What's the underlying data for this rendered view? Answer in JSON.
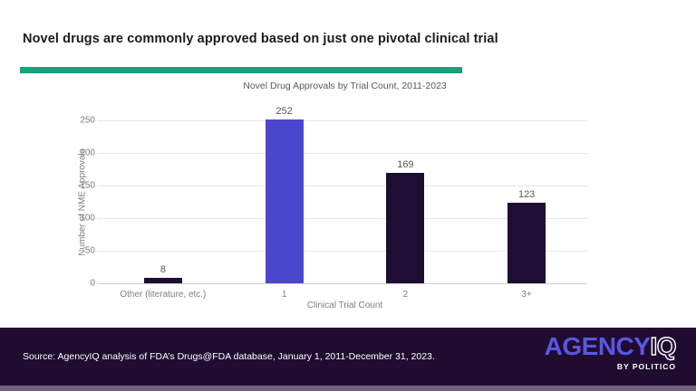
{
  "page": {
    "headline": "Novel drugs are commonly approved based on just one pivotal clinical trial",
    "accent_color": "#12a47b"
  },
  "chart_data": {
    "type": "bar",
    "title": "Novel Drug Approvals by Trial Count, 2011-2023",
    "categories": [
      "Other (literature, etc.)",
      "1",
      "2",
      "3+"
    ],
    "values": [
      8,
      252,
      169,
      123
    ],
    "xlabel": "Clinical Trial Count",
    "ylabel": "Number of NME Approvals",
    "ylim": [
      0,
      250
    ],
    "ytick_step": 50,
    "yticks": [
      0,
      50,
      100,
      150,
      200,
      250
    ],
    "grid": true,
    "legend": false,
    "bar_colors": [
      "#1e0e33",
      "#4b47cd",
      "#1e0e33",
      "#1e0e33"
    ],
    "value_label_color": "#595959",
    "axis_label_color": "#7f7f7f"
  },
  "footer": {
    "source": "Source: AgencyIQ analysis of FDA’s Drugs@FDA database, January 1, 2011-December 31, 2023.",
    "background": "#1f0c30",
    "strip_color": "#6f607e",
    "logo": {
      "agency": "AGENCY",
      "iq": "IQ",
      "byline": "BY POLITICO",
      "agency_color": "#5b57e2"
    }
  }
}
